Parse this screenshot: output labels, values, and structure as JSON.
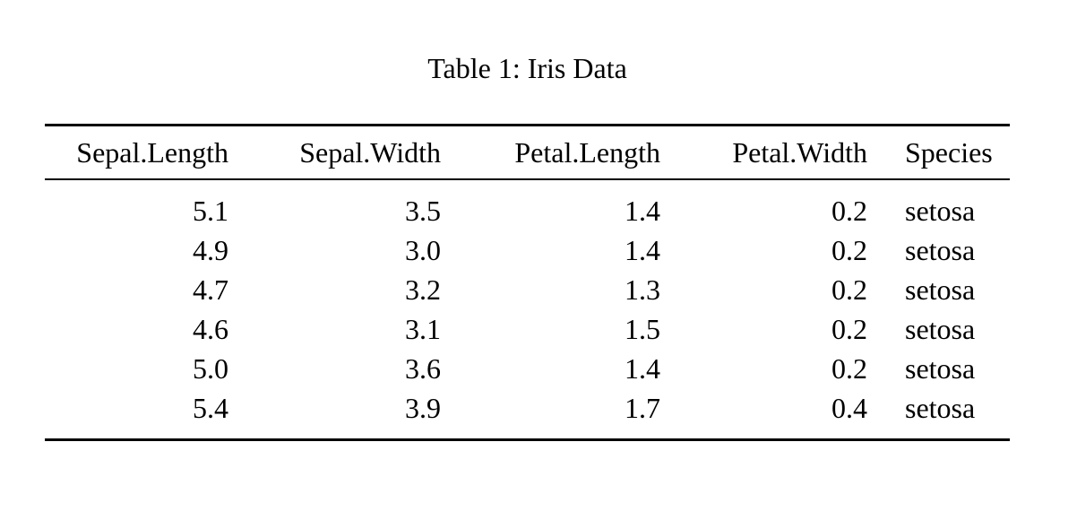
{
  "page": {
    "background": "#ffffff",
    "text_color": "#000000",
    "rule_color": "#000000"
  },
  "table": {
    "caption": "Table 1: Iris Data",
    "columns": [
      {
        "label": "Sepal.Length",
        "align": "right"
      },
      {
        "label": "Sepal.Width",
        "align": "right"
      },
      {
        "label": "Petal.Length",
        "align": "right"
      },
      {
        "label": "Petal.Width",
        "align": "right"
      },
      {
        "label": "Species",
        "align": "left"
      }
    ],
    "rows": [
      [
        "5.1",
        "3.5",
        "1.4",
        "0.2",
        "setosa"
      ],
      [
        "4.9",
        "3.0",
        "1.4",
        "0.2",
        "setosa"
      ],
      [
        "4.7",
        "3.2",
        "1.3",
        "0.2",
        "setosa"
      ],
      [
        "4.6",
        "3.1",
        "1.5",
        "0.2",
        "setosa"
      ],
      [
        "5.0",
        "3.6",
        "1.4",
        "0.2",
        "setosa"
      ],
      [
        "5.4",
        "3.9",
        "1.7",
        "0.4",
        "setosa"
      ]
    ]
  }
}
